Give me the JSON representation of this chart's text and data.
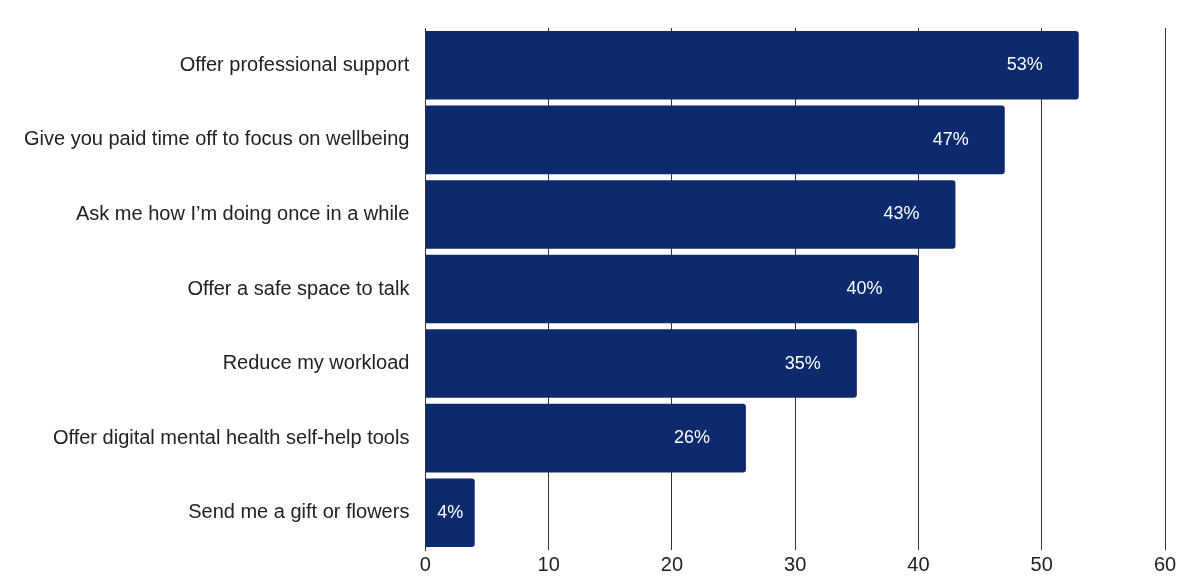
{
  "chart_data": {
    "type": "bar",
    "orientation": "horizontal",
    "categories": [
      "Offer professional support",
      "Give you paid time off to focus on wellbeing",
      "Ask me how I’m doing once in a while",
      "Offer a safe space to talk",
      "Reduce my workload",
      "Offer digital mental health self-help tools",
      "Send me a gift or flowers"
    ],
    "values": [
      53,
      47,
      43,
      40,
      35,
      26,
      4
    ],
    "value_labels": [
      "53%",
      "47%",
      "43%",
      "40%",
      "35%",
      "26%",
      "4%"
    ],
    "color": "#0d2a6e",
    "xlim": [
      0,
      60
    ],
    "xticks": [
      0,
      10,
      20,
      30,
      40,
      50,
      60
    ],
    "grid": "x",
    "legend": false
  }
}
